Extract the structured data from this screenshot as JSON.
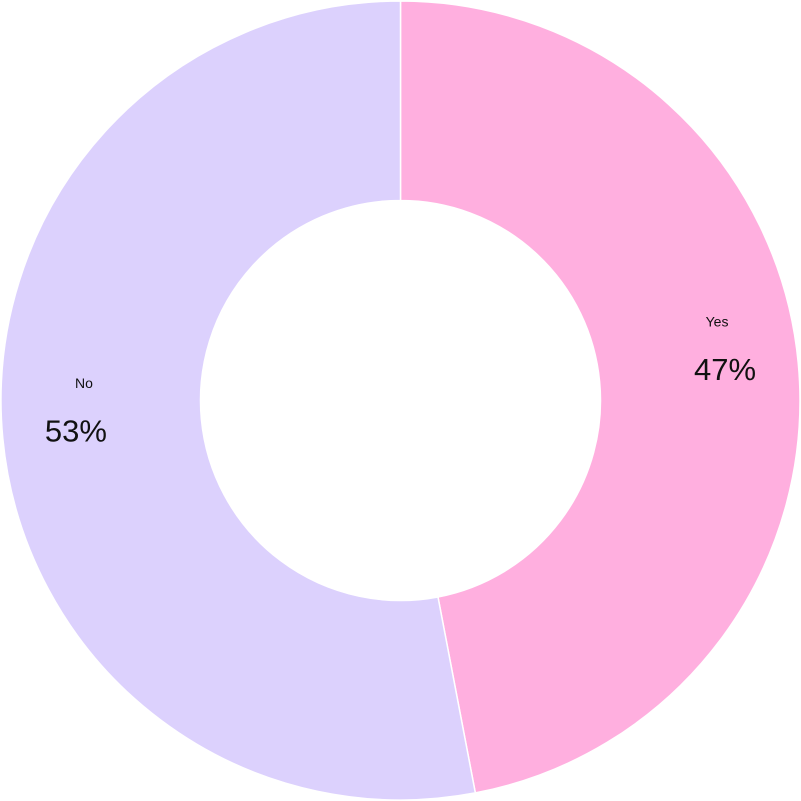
{
  "chart_data": {
    "type": "pie",
    "categories": [
      "Yes",
      "No"
    ],
    "values": [
      47,
      53
    ],
    "value_labels": [
      "47%",
      "53%"
    ],
    "colors": [
      "#ffafdf",
      "#dcd1fd"
    ]
  }
}
